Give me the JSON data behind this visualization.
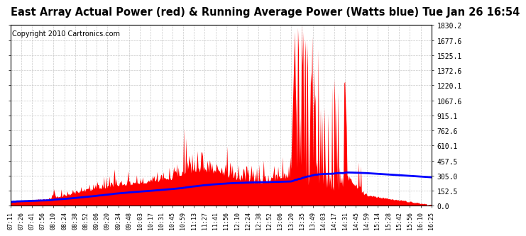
{
  "title": "East Array Actual Power (red) & Running Average Power (Watts blue) Tue Jan 26 16:54",
  "copyright": "Copyright 2010 Cartronics.com",
  "ylim": [
    0.0,
    1830.2
  ],
  "yticks": [
    0.0,
    152.5,
    305.0,
    457.5,
    610.1,
    762.6,
    915.1,
    1067.6,
    1220.1,
    1372.6,
    1525.1,
    1677.6,
    1830.2
  ],
  "ytick_labels": [
    "0.0",
    "152.5",
    "305.0",
    "457.5",
    "610.1",
    "762.6",
    "915.1",
    "1067.6",
    "1220.1",
    "1372.6",
    "1525.1",
    "1677.6",
    "1830.2"
  ],
  "bg_color": "#ffffff",
  "grid_color": "#bbbbbb",
  "actual_color": "#ff0000",
  "avg_color": "#0000ff",
  "x_tick_labels": [
    "07:11",
    "07:26",
    "07:41",
    "07:56",
    "08:10",
    "08:24",
    "08:38",
    "08:52",
    "09:06",
    "09:20",
    "09:34",
    "09:48",
    "10:03",
    "10:17",
    "10:31",
    "10:45",
    "10:59",
    "11:13",
    "11:27",
    "11:41",
    "11:56",
    "12:10",
    "12:24",
    "12:38",
    "12:52",
    "13:06",
    "13:20",
    "13:35",
    "13:49",
    "14:03",
    "14:17",
    "14:31",
    "14:45",
    "14:59",
    "15:14",
    "15:28",
    "15:42",
    "15:56",
    "16:10",
    "16:25"
  ],
  "title_fontsize": 10.5,
  "copyright_fontsize": 7,
  "avg_linewidth": 2.0
}
